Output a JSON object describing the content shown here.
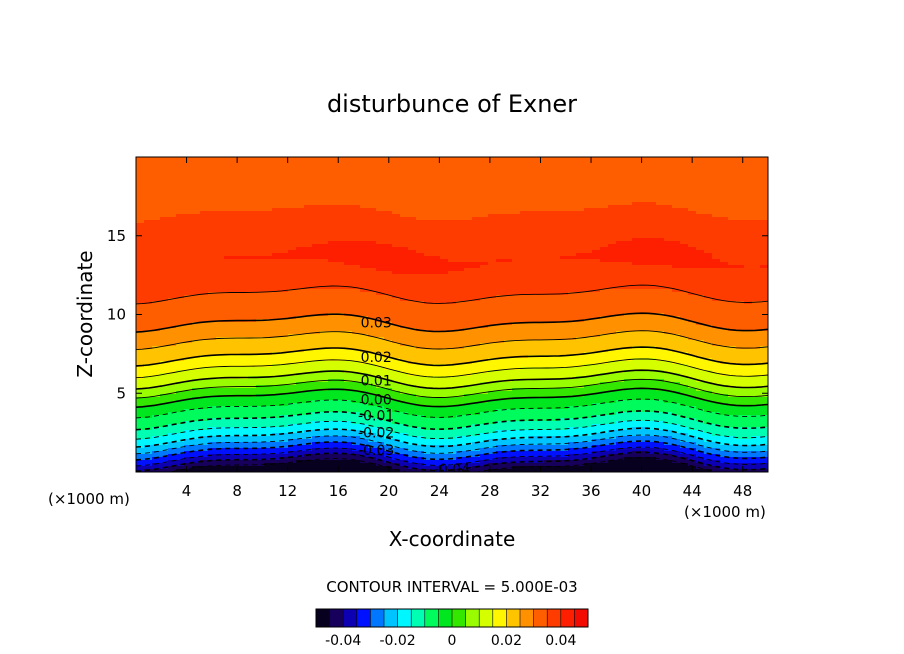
{
  "chart_data": {
    "type": "heatmap",
    "title": "disturbunce of Exner",
    "xlabel": "X-coordinate",
    "ylabel": "Z-coordinate",
    "x_unit": "(×1000 m)",
    "x_unit_right": "(×1000 m)",
    "xlim": [
      0,
      50
    ],
    "ylim": [
      0,
      20
    ],
    "x_ticks": [
      4,
      8,
      12,
      16,
      20,
      24,
      28,
      32,
      36,
      40,
      44,
      48
    ],
    "y_ticks": [
      5,
      10,
      15
    ],
    "contour_interval_text": "CONTOUR INTERVAL = 5.000E-03",
    "contour_interval": 0.005,
    "value_range": [
      -0.05,
      0.05
    ],
    "colorbar": {
      "ticks": [
        -0.04,
        -0.02,
        0,
        0.02,
        0.04
      ],
      "tick_labels": [
        "-0.04",
        "-0.02",
        "0",
        "0.02",
        "0.04"
      ]
    },
    "contour_labels": [
      {
        "text": "0.03",
        "x": 19.0,
        "z": 9.5
      },
      {
        "text": "0.02",
        "x": 19.0,
        "z": 7.3
      },
      {
        "text": "0.01",
        "x": 19.0,
        "z": 5.8
      },
      {
        "text": "0.00",
        "x": 19.0,
        "z": 4.6
      },
      {
        "text": "-0.01",
        "x": 19.0,
        "z": 3.6
      },
      {
        "text": "-0.02",
        "x": 19.0,
        "z": 2.5
      },
      {
        "text": "-0.03",
        "x": 19.0,
        "z": 1.4
      },
      {
        "text": "-0.04",
        "x": 25.0,
        "z": 0.2
      }
    ],
    "colormap": [
      "#000000",
      "#1a0066",
      "#0000ff",
      "#00aaff",
      "#00ffff",
      "#00ff66",
      "#00dd00",
      "#aaff00",
      "#ffff00",
      "#ffaa00",
      "#ff5500",
      "#ff2200",
      "#ee0000"
    ]
  }
}
